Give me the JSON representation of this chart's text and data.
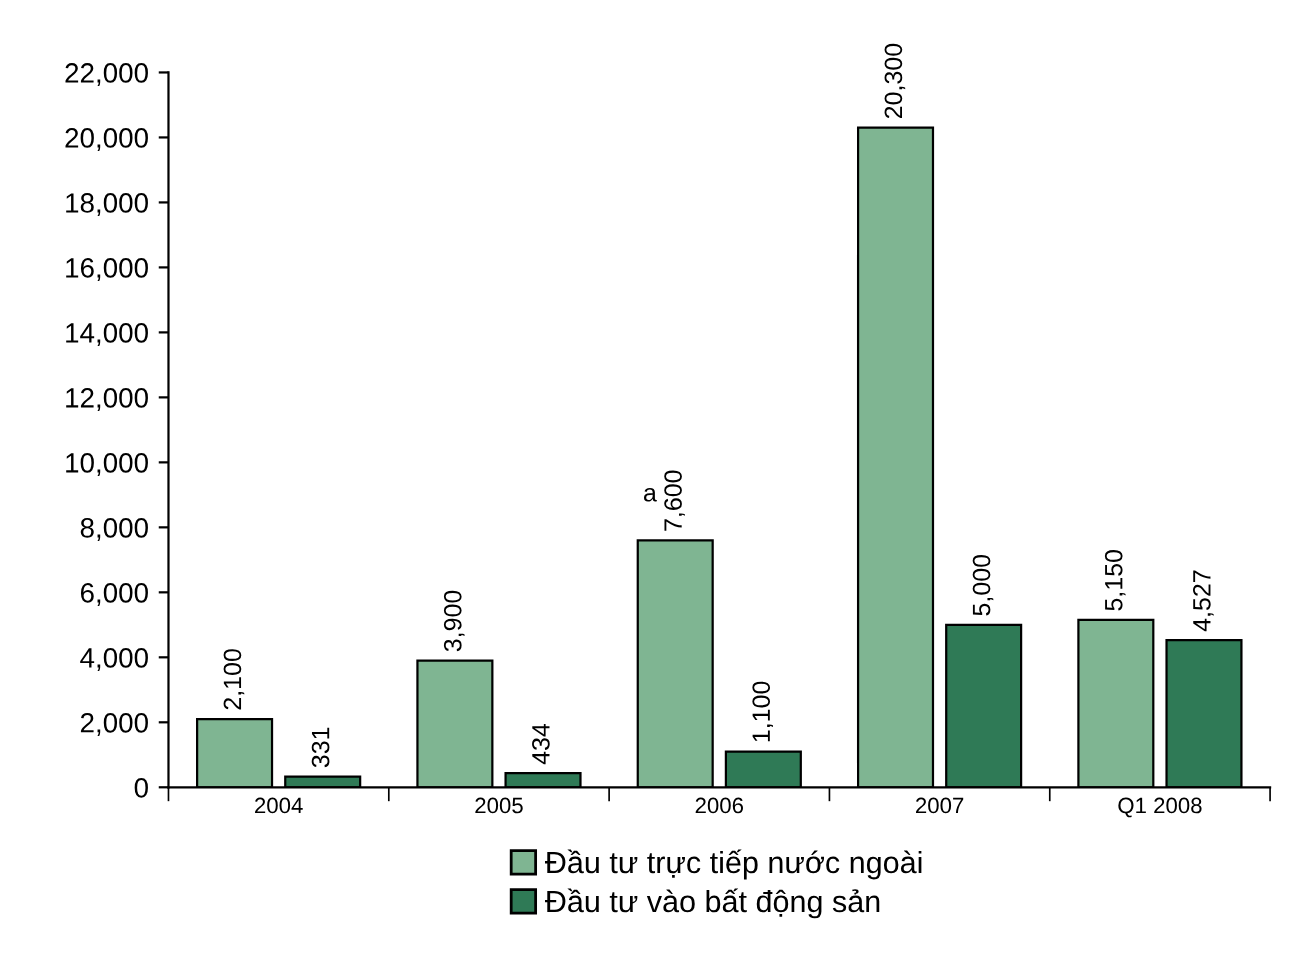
{
  "chart_data": {
    "type": "bar",
    "categories": [
      "2004",
      "2005",
      "2006",
      "2007",
      "Q1 2008"
    ],
    "series": [
      {
        "name": "Đầu tư trực tiếp nước ngoài",
        "color": "#7fb592",
        "values": [
          2100,
          3900,
          7600,
          20300,
          5150
        ]
      },
      {
        "name": "Đầu tư vào bất động sản",
        "color": "#2f7a56",
        "values": [
          331,
          434,
          1100,
          5000,
          4527
        ]
      }
    ],
    "ylim": [
      0,
      22000
    ],
    "yticks": [
      {
        "value": 0,
        "label": "0"
      },
      {
        "value": 2000,
        "label": "2,000"
      },
      {
        "value": 4000,
        "label": "4,000"
      },
      {
        "value": 6000,
        "label": "6,000"
      },
      {
        "value": 8000,
        "label": "8,000"
      },
      {
        "value": 10000,
        "label": "10,000"
      },
      {
        "value": 12000,
        "label": "12,000"
      },
      {
        "value": 14000,
        "label": "14,000"
      },
      {
        "value": 16000,
        "label": "16,000"
      },
      {
        "value": 18000,
        "label": "18,000"
      },
      {
        "value": 20000,
        "label": "20,000"
      },
      {
        "value": 22000,
        "label": "22,000"
      }
    ],
    "value_labels": [
      [
        "2,100",
        "3,900",
        "7,600",
        "20,300",
        "5,150"
      ],
      [
        "331",
        "434",
        "1,100",
        "5,000",
        "4,527"
      ]
    ],
    "annotations": [
      "a"
    ],
    "grid": false,
    "legend": "bottom"
  }
}
